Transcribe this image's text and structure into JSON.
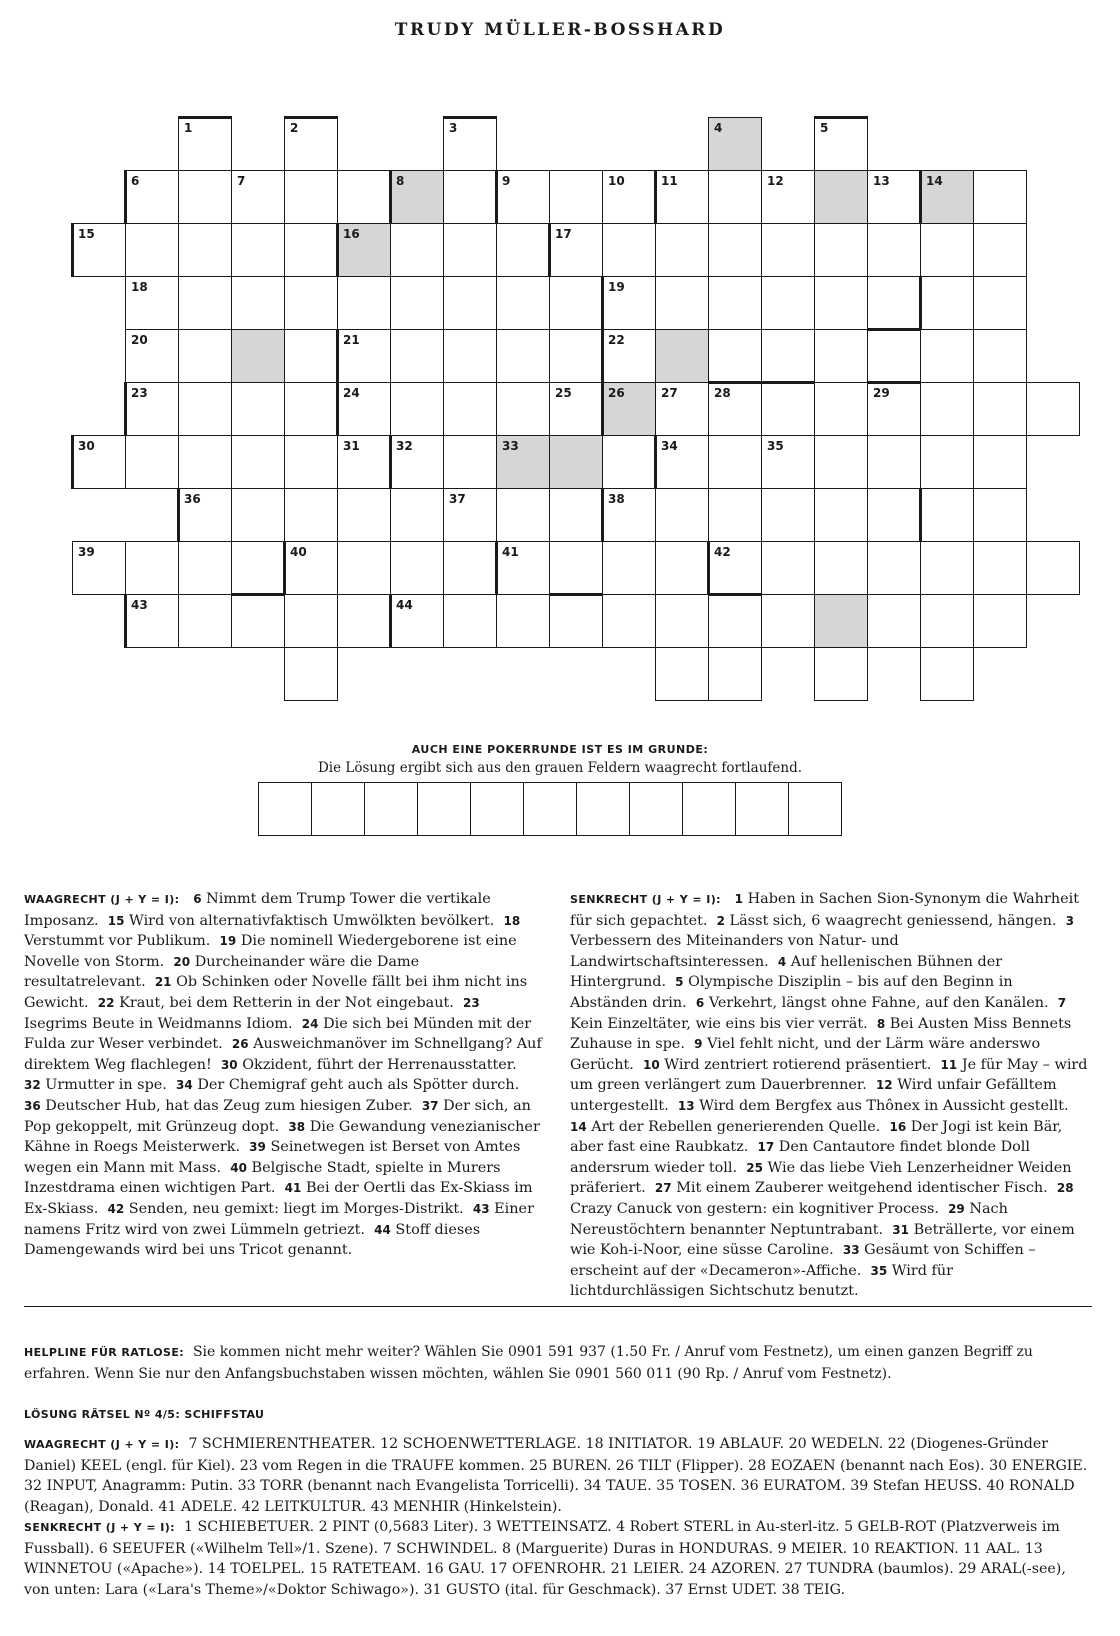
{
  "author": "TRUDY MÜLLER-BOSSHARD",
  "grid": {
    "cells": [
      [
        0,
        2
      ],
      [
        0,
        4
      ],
      [
        0,
        7
      ],
      [
        0,
        12
      ],
      [
        0,
        14
      ],
      [
        1,
        1
      ],
      [
        1,
        2
      ],
      [
        1,
        3
      ],
      [
        1,
        4
      ],
      [
        1,
        5
      ],
      [
        1,
        6
      ],
      [
        1,
        7
      ],
      [
        1,
        8
      ],
      [
        1,
        9
      ],
      [
        1,
        10
      ],
      [
        1,
        11
      ],
      [
        1,
        12
      ],
      [
        1,
        13
      ],
      [
        1,
        14
      ],
      [
        1,
        15
      ],
      [
        1,
        16
      ],
      [
        1,
        17
      ],
      [
        2,
        0
      ],
      [
        2,
        1
      ],
      [
        2,
        2
      ],
      [
        2,
        3
      ],
      [
        2,
        4
      ],
      [
        2,
        5
      ],
      [
        2,
        6
      ],
      [
        2,
        7
      ],
      [
        2,
        8
      ],
      [
        2,
        9
      ],
      [
        2,
        10
      ],
      [
        2,
        11
      ],
      [
        2,
        12
      ],
      [
        2,
        13
      ],
      [
        2,
        14
      ],
      [
        2,
        15
      ],
      [
        2,
        16
      ],
      [
        2,
        17
      ],
      [
        3,
        1
      ],
      [
        3,
        2
      ],
      [
        3,
        3
      ],
      [
        3,
        4
      ],
      [
        3,
        5
      ],
      [
        3,
        6
      ],
      [
        3,
        7
      ],
      [
        3,
        8
      ],
      [
        3,
        9
      ],
      [
        3,
        10
      ],
      [
        3,
        11
      ],
      [
        3,
        12
      ],
      [
        3,
        13
      ],
      [
        3,
        14
      ],
      [
        3,
        15
      ],
      [
        3,
        16
      ],
      [
        3,
        17
      ],
      [
        4,
        1
      ],
      [
        4,
        2
      ],
      [
        4,
        3
      ],
      [
        4,
        4
      ],
      [
        4,
        5
      ],
      [
        4,
        6
      ],
      [
        4,
        7
      ],
      [
        4,
        8
      ],
      [
        4,
        9
      ],
      [
        4,
        10
      ],
      [
        4,
        11
      ],
      [
        4,
        12
      ],
      [
        4,
        13
      ],
      [
        4,
        14
      ],
      [
        4,
        15
      ],
      [
        4,
        16
      ],
      [
        4,
        17
      ],
      [
        5,
        1
      ],
      [
        5,
        2
      ],
      [
        5,
        3
      ],
      [
        5,
        4
      ],
      [
        5,
        5
      ],
      [
        5,
        6
      ],
      [
        5,
        7
      ],
      [
        5,
        8
      ],
      [
        5,
        9
      ],
      [
        5,
        10
      ],
      [
        5,
        11
      ],
      [
        5,
        12
      ],
      [
        5,
        13
      ],
      [
        5,
        14
      ],
      [
        5,
        15
      ],
      [
        5,
        16
      ],
      [
        5,
        17
      ],
      [
        5,
        18
      ],
      [
        6,
        0
      ],
      [
        6,
        1
      ],
      [
        6,
        2
      ],
      [
        6,
        3
      ],
      [
        6,
        4
      ],
      [
        6,
        5
      ],
      [
        6,
        6
      ],
      [
        6,
        7
      ],
      [
        6,
        8
      ],
      [
        6,
        9
      ],
      [
        6,
        10
      ],
      [
        6,
        11
      ],
      [
        6,
        12
      ],
      [
        6,
        13
      ],
      [
        6,
        14
      ],
      [
        6,
        15
      ],
      [
        6,
        16
      ],
      [
        6,
        17
      ],
      [
        7,
        2
      ],
      [
        7,
        3
      ],
      [
        7,
        4
      ],
      [
        7,
        5
      ],
      [
        7,
        6
      ],
      [
        7,
        7
      ],
      [
        7,
        8
      ],
      [
        7,
        9
      ],
      [
        7,
        10
      ],
      [
        7,
        11
      ],
      [
        7,
        12
      ],
      [
        7,
        13
      ],
      [
        7,
        14
      ],
      [
        7,
        15
      ],
      [
        7,
        16
      ],
      [
        7,
        17
      ],
      [
        8,
        0
      ],
      [
        8,
        1
      ],
      [
        8,
        2
      ],
      [
        8,
        3
      ],
      [
        8,
        4
      ],
      [
        8,
        5
      ],
      [
        8,
        6
      ],
      [
        8,
        7
      ],
      [
        8,
        8
      ],
      [
        8,
        9
      ],
      [
        8,
        10
      ],
      [
        8,
        11
      ],
      [
        8,
        12
      ],
      [
        8,
        13
      ],
      [
        8,
        14
      ],
      [
        8,
        15
      ],
      [
        8,
        16
      ],
      [
        8,
        17
      ],
      [
        8,
        18
      ],
      [
        9,
        1
      ],
      [
        9,
        2
      ],
      [
        9,
        3
      ],
      [
        9,
        4
      ],
      [
        9,
        5
      ],
      [
        9,
        6
      ],
      [
        9,
        7
      ],
      [
        9,
        8
      ],
      [
        9,
        9
      ],
      [
        9,
        10
      ],
      [
        9,
        11
      ],
      [
        9,
        12
      ],
      [
        9,
        13
      ],
      [
        9,
        14
      ],
      [
        9,
        15
      ],
      [
        9,
        16
      ],
      [
        9,
        17
      ],
      [
        10,
        4
      ],
      [
        10,
        11
      ],
      [
        10,
        12
      ],
      [
        10,
        14
      ],
      [
        10,
        16
      ]
    ],
    "grey": [
      [
        0,
        12
      ],
      [
        1,
        6
      ],
      [
        1,
        14
      ],
      [
        1,
        16
      ],
      [
        2,
        5
      ],
      [
        4,
        3
      ],
      [
        4,
        11
      ],
      [
        5,
        10
      ],
      [
        6,
        8
      ],
      [
        6,
        9
      ],
      [
        9,
        14
      ]
    ],
    "numbers": [
      {
        "r": 0,
        "c": 2,
        "n": "1"
      },
      {
        "r": 0,
        "c": 4,
        "n": "2"
      },
      {
        "r": 0,
        "c": 7,
        "n": "3"
      },
      {
        "r": 0,
        "c": 12,
        "n": "4"
      },
      {
        "r": 0,
        "c": 14,
        "n": "5"
      },
      {
        "r": 1,
        "c": 1,
        "n": "6"
      },
      {
        "r": 1,
        "c": 3,
        "n": "7"
      },
      {
        "r": 1,
        "c": 6,
        "n": "8"
      },
      {
        "r": 1,
        "c": 8,
        "n": "9"
      },
      {
        "r": 1,
        "c": 10,
        "n": "10"
      },
      {
        "r": 1,
        "c": 11,
        "n": "11"
      },
      {
        "r": 1,
        "c": 13,
        "n": "12"
      },
      {
        "r": 1,
        "c": 15,
        "n": "13"
      },
      {
        "r": 1,
        "c": 16,
        "n": "14"
      },
      {
        "r": 2,
        "c": 0,
        "n": "15"
      },
      {
        "r": 2,
        "c": 5,
        "n": "16"
      },
      {
        "r": 2,
        "c": 9,
        "n": "17"
      },
      {
        "r": 3,
        "c": 1,
        "n": "18"
      },
      {
        "r": 3,
        "c": 10,
        "n": "19"
      },
      {
        "r": 4,
        "c": 1,
        "n": "20"
      },
      {
        "r": 4,
        "c": 5,
        "n": "21"
      },
      {
        "r": 4,
        "c": 10,
        "n": "22"
      },
      {
        "r": 5,
        "c": 1,
        "n": "23"
      },
      {
        "r": 5,
        "c": 5,
        "n": "24"
      },
      {
        "r": 5,
        "c": 9,
        "n": "25"
      },
      {
        "r": 5,
        "c": 10,
        "n": "26"
      },
      {
        "r": 5,
        "c": 11,
        "n": "27"
      },
      {
        "r": 5,
        "c": 12,
        "n": "28"
      },
      {
        "r": 5,
        "c": 15,
        "n": "29"
      },
      {
        "r": 6,
        "c": 0,
        "n": "30"
      },
      {
        "r": 6,
        "c": 5,
        "n": "31"
      },
      {
        "r": 6,
        "c": 6,
        "n": "32"
      },
      {
        "r": 6,
        "c": 8,
        "n": "33"
      },
      {
        "r": 6,
        "c": 11,
        "n": "34"
      },
      {
        "r": 6,
        "c": 13,
        "n": "35"
      },
      {
        "r": 7,
        "c": 2,
        "n": "36"
      },
      {
        "r": 7,
        "c": 7,
        "n": "37"
      },
      {
        "r": 7,
        "c": 10,
        "n": "38"
      },
      {
        "r": 8,
        "c": 0,
        "n": "39"
      },
      {
        "r": 8,
        "c": 4,
        "n": "40"
      },
      {
        "r": 8,
        "c": 8,
        "n": "41"
      },
      {
        "r": 8,
        "c": 12,
        "n": "42"
      },
      {
        "r": 9,
        "c": 1,
        "n": "43"
      },
      {
        "r": 9,
        "c": 6,
        "n": "44"
      }
    ],
    "bars": [
      {
        "r": 0,
        "c": 2,
        "s": "top"
      },
      {
        "r": 0,
        "c": 4,
        "s": "top"
      },
      {
        "r": 0,
        "c": 7,
        "s": "top"
      },
      {
        "r": 0,
        "c": 14,
        "s": "top"
      },
      {
        "r": 1,
        "c": 1,
        "s": "left"
      },
      {
        "r": 1,
        "c": 6,
        "s": "left"
      },
      {
        "r": 1,
        "c": 8,
        "s": "left"
      },
      {
        "r": 1,
        "c": 11,
        "s": "left"
      },
      {
        "r": 1,
        "c": 16,
        "s": "left"
      },
      {
        "r": 2,
        "c": 0,
        "s": "left"
      },
      {
        "r": 2,
        "c": 5,
        "s": "left"
      },
      {
        "r": 2,
        "c": 9,
        "s": "left"
      },
      {
        "r": 3,
        "c": 10,
        "s": "left"
      },
      {
        "r": 3,
        "c": 16,
        "s": "left"
      },
      {
        "r": 3,
        "c": 15,
        "s": "bottom"
      },
      {
        "r": 4,
        "c": 5,
        "s": "left"
      },
      {
        "r": 4,
        "c": 10,
        "s": "left"
      },
      {
        "r": 5,
        "c": 1,
        "s": "left"
      },
      {
        "r": 5,
        "c": 5,
        "s": "left"
      },
      {
        "r": 5,
        "c": 10,
        "s": "left"
      },
      {
        "r": 5,
        "c": 12,
        "s": "top"
      },
      {
        "r": 5,
        "c": 13,
        "s": "top"
      },
      {
        "r": 5,
        "c": 15,
        "s": "top"
      },
      {
        "r": 6,
        "c": 0,
        "s": "left"
      },
      {
        "r": 6,
        "c": 6,
        "s": "left"
      },
      {
        "r": 6,
        "c": 11,
        "s": "left"
      },
      {
        "r": 7,
        "c": 2,
        "s": "left"
      },
      {
        "r": 7,
        "c": 10,
        "s": "left"
      },
      {
        "r": 7,
        "c": 16,
        "s": "left"
      },
      {
        "r": 8,
        "c": 3,
        "s": "bottom"
      },
      {
        "r": 8,
        "c": 4,
        "s": "left"
      },
      {
        "r": 8,
        "c": 8,
        "s": "left"
      },
      {
        "r": 8,
        "c": 9,
        "s": "bottom"
      },
      {
        "r": 8,
        "c": 12,
        "s": "left"
      },
      {
        "r": 8,
        "c": 12,
        "s": "bottom"
      },
      {
        "r": 9,
        "c": 1,
        "s": "left"
      },
      {
        "r": 9,
        "c": 6,
        "s": "left"
      }
    ]
  },
  "solution": {
    "title": "AUCH EINE POKERRUNDE IST ES IM GRUNDE:",
    "subtitle": "Die Lösung ergibt sich aus den grauen Feldern waagrecht fortlaufend.",
    "box_count": 11
  },
  "clues": {
    "across": {
      "label": "WAAGRECHT (J + Y = I):",
      "items": [
        {
          "n": "6",
          "t": "Nimmt dem Trump Tower die vertikale Imposanz."
        },
        {
          "n": "15",
          "t": "Wird von alternativfaktisch Umwölkten bevölkert."
        },
        {
          "n": "18",
          "t": "Verstummt vor Publikum."
        },
        {
          "n": "19",
          "t": "Die nominell Wiedergeborene ist eine Novelle von Storm."
        },
        {
          "n": "20",
          "t": "Durcheinander wäre die Dame resultatrelevant."
        },
        {
          "n": "21",
          "t": "Ob Schinken oder Novelle fällt bei ihm nicht ins Gewicht."
        },
        {
          "n": "22",
          "t": "Kraut, bei dem Retterin in der Not eingebaut."
        },
        {
          "n": "23",
          "t": "Isegrims Beute in Weidmanns Idiom."
        },
        {
          "n": "24",
          "t": "Die sich bei Münden mit der Fulda zur Weser verbindet."
        },
        {
          "n": "26",
          "t": "Ausweichmanöver im Schnellgang? Auf direktem Weg flachlegen!"
        },
        {
          "n": "30",
          "t": "Okzident, führt der Herrenausstatter."
        },
        {
          "n": "32",
          "t": "Urmutter in spe."
        },
        {
          "n": "34",
          "t": "Der Chemigraf geht auch als Spötter durch."
        },
        {
          "n": "36",
          "t": "Deutscher Hub, hat das Zeug zum hiesigen Zuber."
        },
        {
          "n": "37",
          "t": "Der sich, an Pop gekoppelt, mit Grünzeug dopt."
        },
        {
          "n": "38",
          "t": "Die Gewandung venezianischer Kähne in Roegs Meisterwerk."
        },
        {
          "n": "39",
          "t": "Seinetwegen ist Berset von Amtes wegen ein Mann mit Mass."
        },
        {
          "n": "40",
          "t": "Belgische Stadt, spielte in Murers Inzestdrama einen wichtigen Part."
        },
        {
          "n": "41",
          "t": "Bei der Oertli das Ex-Skiass im Ex-Skiass."
        },
        {
          "n": "42",
          "t": "Senden, neu gemixt: liegt im Morges-Distrikt."
        },
        {
          "n": "43",
          "t": "Einer namens Fritz wird von zwei Lümmeln getriezt."
        },
        {
          "n": "44",
          "t": "Stoff dieses Damengewands wird bei uns Tricot genannt."
        }
      ]
    },
    "down": {
      "label": "SENKRECHT (J + Y = I):",
      "items": [
        {
          "n": "1",
          "t": "Haben in Sachen Sion-Synonym die Wahrheit für sich gepachtet."
        },
        {
          "n": "2",
          "t": "Lässt sich, 6 waagrecht geniessend, hängen."
        },
        {
          "n": "3",
          "t": "Verbessern des Miteinanders von Natur- und Landwirtschaftsinteressen."
        },
        {
          "n": "4",
          "t": "Auf hellenischen Bühnen der Hintergrund."
        },
        {
          "n": "5",
          "t": "Olympische Disziplin – bis auf den Beginn in Abständen drin."
        },
        {
          "n": "6",
          "t": "Verkehrt, längst ohne Fahne, auf den Kanälen."
        },
        {
          "n": "7",
          "t": "Kein Einzeltäter, wie eins bis vier verrät."
        },
        {
          "n": "8",
          "t": "Bei Austen Miss Bennets Zuhause in spe."
        },
        {
          "n": "9",
          "t": "Viel fehlt nicht, und der Lärm wäre anderswo Gerücht."
        },
        {
          "n": "10",
          "t": "Wird zentriert rotierend präsentiert."
        },
        {
          "n": "11",
          "t": "Je für May – wird um green verlängert zum Dauerbrenner."
        },
        {
          "n": "12",
          "t": "Wird unfair Gefälltem untergestellt."
        },
        {
          "n": "13",
          "t": "Wird dem Bergfex aus Thônex in Aussicht gestellt."
        },
        {
          "n": "14",
          "t": "Art der Rebellen generierenden Quelle."
        },
        {
          "n": "16",
          "t": "Der Jogi ist kein Bär, aber fast eine Raubkatz."
        },
        {
          "n": "17",
          "t": "Den Cantautore findet blonde Doll andersrum wieder toll."
        },
        {
          "n": "25",
          "t": "Wie das liebe Vieh Lenzerheidner Weiden präferiert."
        },
        {
          "n": "27",
          "t": "Mit einem Zauberer weitgehend identischer Fisch."
        },
        {
          "n": "28",
          "t": "Crazy Canuck von gestern: ein kognitiver Process."
        },
        {
          "n": "29",
          "t": "Nach Nereustöchtern benannter Neptuntrabant."
        },
        {
          "n": "31",
          "t": "Beträllerte, vor einem wie Koh-i-Noor, eine süsse Caroline."
        },
        {
          "n": "33",
          "t": "Gesäumt von Schiffen – erscheint auf der «Decameron»-Affiche."
        },
        {
          "n": "35",
          "t": "Wird für lichtdurchlässigen Sichtschutz benutzt."
        }
      ]
    }
  },
  "helpline": {
    "label": "HELPLINE FÜR RATLOSE:",
    "text": "Sie kommen nicht mehr weiter? Wählen Sie 0901 591 937 (1.50 Fr. / Anruf vom Festnetz), um einen ganzen Begriff zu erfahren. Wenn Sie nur den Anfangsbuchstaben wissen möchten, wählen Sie 0901 560 011 (90 Rp. / Anruf vom Festnetz)."
  },
  "previous": {
    "label": "LÖSUNG RÄTSEL Nº 4/5: SCHIFFSTAU",
    "across_label": "WAAGRECHT (J + Y = I):",
    "across_text": "7 SCHMIERENTHEATER. 12 SCHOENWETTERLAGE. 18 INITIATOR. 19 ABLAUF. 20 WEDELN. 22 (Diogenes-Gründer Daniel) KEEL (engl. für Kiel). 23 vom Regen in die TRAUFE kommen. 25 BUREN. 26 TILT (Flipper). 28 EOZAEN (benannt nach Eos). 30 ENERGIE. 32 INPUT, Anagramm: Putin. 33 TORR (benannt nach Evangelista Torricelli). 34 TAUE. 35 TOSEN. 36 EURATOM. 39 Stefan HEUSS. 40 RONALD (Reagan), Donald. 41 ADELE. 42 LEITKULTUR. 43 MENHIR (Hinkelstein).",
    "down_label": "SENKRECHT (J + Y = I):",
    "down_text": "1 SCHIEBETUER. 2 PINT (0,5683 Liter). 3 WETTEINSATZ. 4 Robert STERL in Au-sterl-itz. 5 GELB-ROT (Platzverweis im Fussball). 6 SEEUFER («Wilhelm Tell»/1. Szene). 7 SCHWINDEL. 8 (Marguerite) Duras in HONDURAS. 9 MEIER. 10 REAKTION. 11 AAL. 13 WINNETOU («Apache»). 14 TOELPEL. 15 RATETEAM. 16 GAU. 17 OFENROHR. 21 LEIER. 24 AZOREN. 27 TUNDRA (baumlos). 29 ARAL(-see), von unten: Lara («Lara's Theme»/«Doktor Schiwago»). 31 GUSTO (ital. für Geschmack). 37 Ernst UDET. 38 TEIG."
  }
}
